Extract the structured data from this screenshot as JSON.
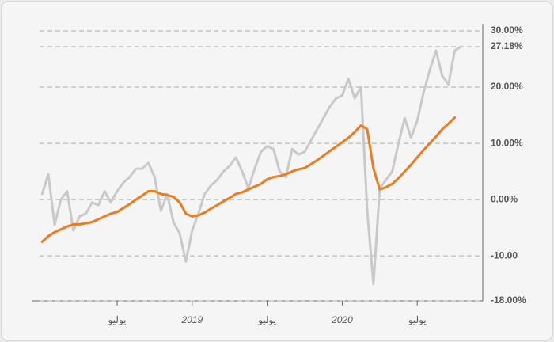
{
  "chart_data": {
    "type": "line",
    "categories": [
      null,
      null,
      null,
      null,
      null,
      null,
      null,
      null,
      null,
      null,
      null,
      null,
      "يوليو",
      null,
      null,
      null,
      null,
      null,
      null,
      null,
      null,
      null,
      null,
      null,
      "2019",
      null,
      null,
      null,
      null,
      null,
      null,
      null,
      null,
      null,
      null,
      null,
      "يوليو",
      null,
      null,
      null,
      null,
      null,
      null,
      null,
      null,
      null,
      null,
      null,
      "2020",
      null,
      null,
      null,
      null,
      null,
      null,
      null,
      null,
      null,
      null,
      null,
      "يوليو",
      null,
      null,
      null,
      null,
      null,
      null,
      null
    ],
    "series": [
      {
        "color": "#c9c9c9",
        "values": [
          1,
          4.5,
          -4.5,
          0,
          1.5,
          -5.5,
          -3,
          -2.5,
          -0.5,
          -1,
          1.5,
          -0.5,
          1.5,
          3,
          4,
          5.5,
          5.5,
          6.5,
          4,
          -2,
          1,
          -4,
          -6,
          -11,
          -5.5,
          -2.5,
          1,
          2.5,
          3.5,
          5,
          6,
          7.5,
          5,
          2,
          5.5,
          8.5,
          9.5,
          9,
          5,
          4,
          9,
          8,
          8.5,
          10.5,
          12.5,
          14.5,
          16.5,
          18,
          18.5,
          21.5,
          18,
          20,
          -2,
          -15,
          2,
          3.5,
          5,
          10,
          14.5,
          11,
          14,
          19,
          23,
          26.5,
          22,
          20.5,
          26.5,
          27.18
        ]
      },
      {
        "color": "#ef7b1f",
        "values": [
          -7.5,
          -6.5,
          -5.8,
          -5.3,
          -4.8,
          -4.4,
          -4.4,
          -4.2,
          -4,
          -3.5,
          -3,
          -2.5,
          -2.2,
          -1.5,
          -0.8,
          0,
          0.7,
          1.5,
          1.5,
          1,
          0.8,
          0.5,
          -0.5,
          -2.5,
          -3,
          -2.8,
          -2.3,
          -1.6,
          -1,
          -0.3,
          0.3,
          1,
          1.3,
          1.8,
          2.3,
          2.8,
          3.6,
          4,
          4.2,
          4.5,
          5,
          5.4,
          5.6,
          6.3,
          7,
          7.8,
          8.6,
          9.4,
          10.2,
          11,
          12,
          13.2,
          12.5,
          5.5,
          1.8,
          2.2,
          2.8,
          3.8,
          5,
          6.2,
          7.5,
          8.8,
          10,
          11.2,
          12.5,
          13.5,
          14.6,
          null
        ]
      }
    ],
    "ylim": [
      -18,
      30
    ],
    "yticks": [
      {
        "value": 30,
        "label": "30.00%"
      },
      {
        "value": 27.18,
        "label": "27.18%"
      },
      {
        "value": 20,
        "label": "20.00%"
      },
      {
        "value": 10,
        "label": "10.00%"
      },
      {
        "value": 0,
        "label": "0.00%"
      },
      {
        "value": -10,
        "label": "-10.00"
      },
      {
        "value": -18,
        "label": "-18.00%"
      }
    ],
    "grid": true
  }
}
